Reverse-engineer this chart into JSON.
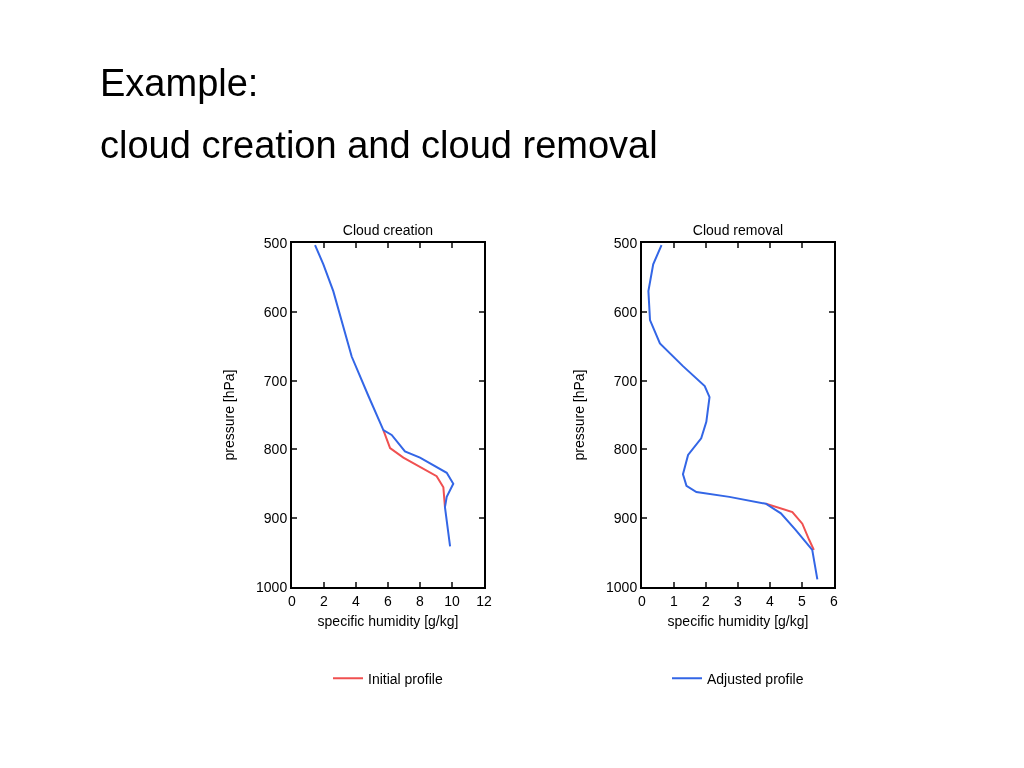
{
  "chart_data": [
    {
      "type": "line",
      "title": "Cloud creation",
      "xlabel": "specific humidity [g/kg]",
      "ylabel": "pressure [hPa]",
      "annotations": [
        "Example:",
        "cloud creation and cloud removal"
      ],
      "xlim": [
        0,
        12
      ],
      "xticks": [
        0,
        2,
        4,
        6,
        8,
        10,
        12
      ],
      "ylim": [
        1000,
        500
      ],
      "yticks": [
        500,
        600,
        700,
        800,
        900,
        1000
      ],
      "grid": false,
      "legend": "bottom",
      "line_style": "solid",
      "marker": "none",
      "series": [
        {
          "name": "Initial profile",
          "color": "#f05050",
          "x": [
            5.71,
            6.13,
            6.96,
            9.04,
            9.46,
            9.56
          ],
          "values": [
            772,
            798,
            812,
            839,
            855,
            884
          ]
        },
        {
          "color": "#3366e6",
          "x": [
            1.44,
            1.96,
            2.58,
            3.73,
            4.77,
            5.71,
            6.23,
            7.06,
            8.0,
            9.67,
            10.08,
            9.67,
            9.56,
            9.88
          ],
          "values": [
            503,
            531,
            570,
            665,
            722,
            772,
            779,
            803,
            812,
            834,
            850,
            869,
            884,
            941
          ]
        }
      ]
    },
    {
      "type": "line",
      "title": "Cloud removal",
      "xlabel": "specific humidity [g/kg]",
      "ylabel": "pressure [hPa]",
      "xlim": [
        0,
        6
      ],
      "xticks": [
        0,
        1,
        2,
        3,
        4,
        5,
        6
      ],
      "ylim": [
        1000,
        500
      ],
      "yticks": [
        500,
        600,
        700,
        800,
        900,
        1000
      ],
      "grid": false,
      "legend": "bottom",
      "line_style": "solid",
      "marker": "none",
      "series": [
        {
          "color": "#f05050",
          "x": [
            3.87,
            4.7,
            5.01,
            5.22,
            5.37
          ],
          "values": [
            879,
            891,
            908,
            931,
            946
          ]
        },
        {
          "name": "Adjusted profile",
          "color": "#3366e6",
          "x": [
            0.61,
            0.35,
            0.2,
            0.25,
            0.56,
            1.28,
            1.96,
            2.11,
            2.01,
            1.85,
            1.44,
            1.28,
            1.39,
            1.7,
            2.73,
            3.87,
            4.34,
            4.8,
            5.32,
            5.48
          ],
          "values": [
            503,
            531,
            570,
            612,
            646,
            679,
            708,
            724,
            760,
            784,
            808,
            836,
            853,
            862,
            869,
            879,
            893,
            917,
            946,
            989
          ]
        }
      ]
    }
  ]
}
